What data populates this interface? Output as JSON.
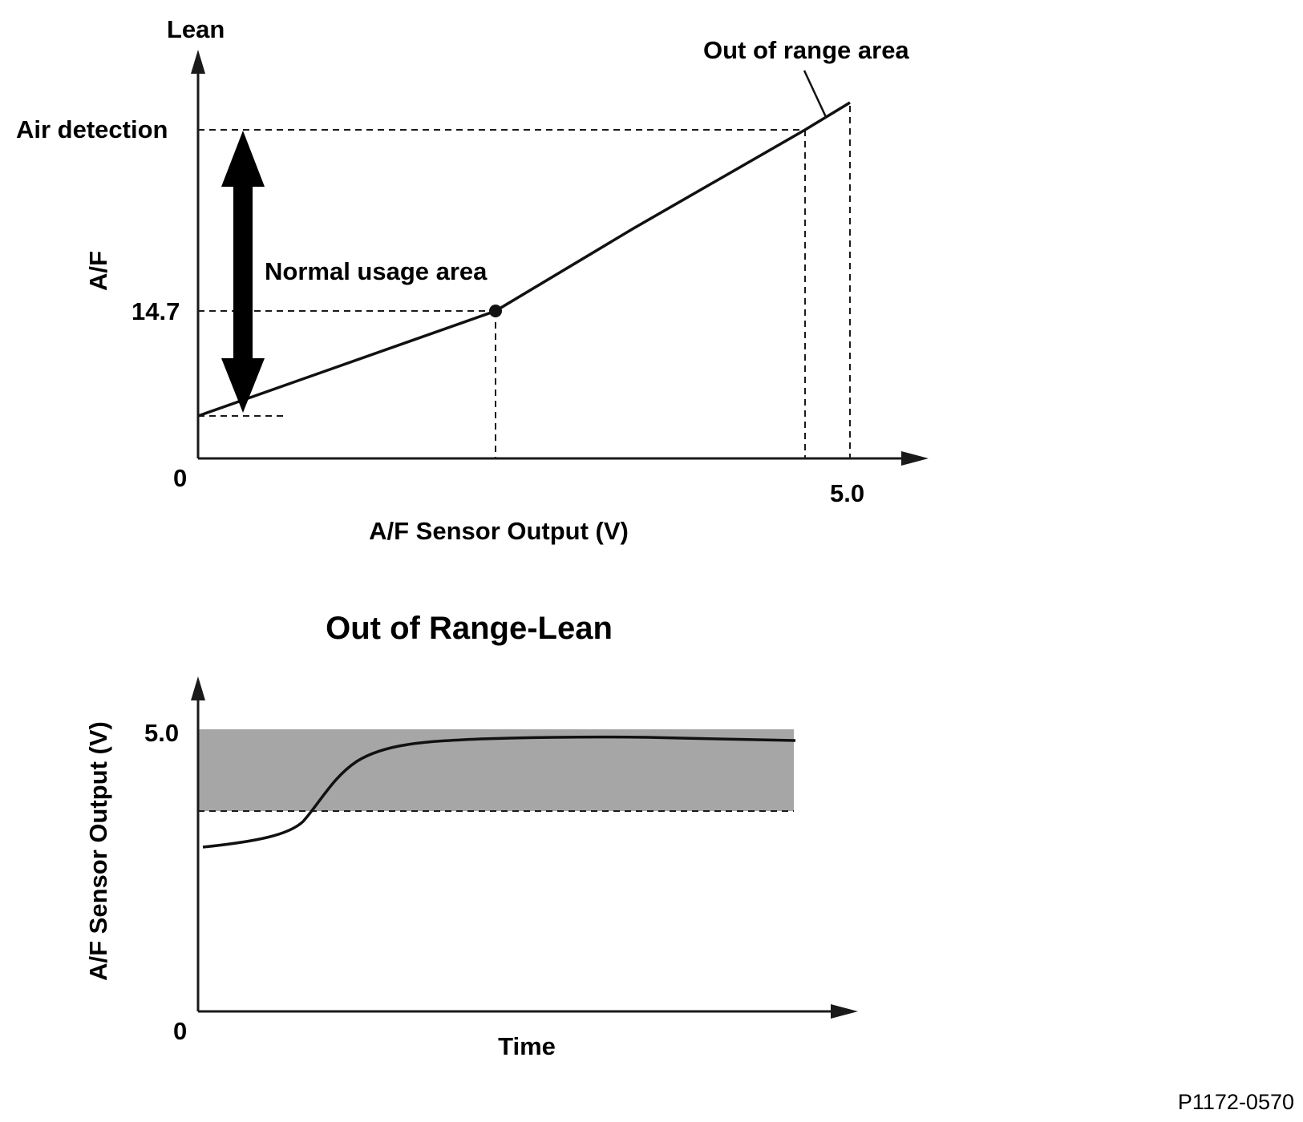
{
  "top_chart": {
    "y_axis_top_label": "Lean",
    "y_axis_label": "A/F",
    "x_axis_label": "A/F Sensor Output (V)",
    "origin_label": "0",
    "x_tick_label": "5.0",
    "y_level_labels": {
      "air_detection": "Air detection",
      "stoich": "14.7"
    },
    "annotations": {
      "normal_usage": "Normal usage area",
      "out_of_range": "Out of range area"
    }
  },
  "bottom_chart": {
    "title": "Out of Range-Lean",
    "y_axis_label": "A/F Sensor Output (V)",
    "x_axis_label": "Time",
    "origin_label": "0",
    "y_tick_label": "5.0",
    "band_color": "#a6a6a6"
  },
  "figure_code": "P1172-0570"
}
